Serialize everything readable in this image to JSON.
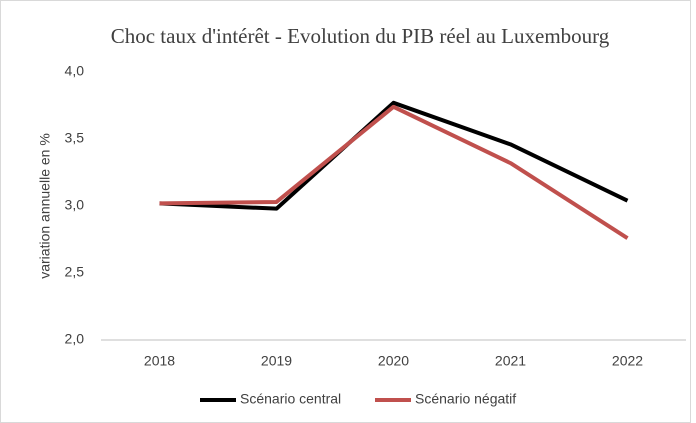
{
  "chart_data": {
    "type": "line",
    "title": "Choc taux d'intérêt - Evolution du PIB réel au Luxembourg",
    "y_label": "variation annuelle en %",
    "categories": [
      "2018",
      "2019",
      "2020",
      "2021",
      "2022"
    ],
    "series": [
      {
        "name": "Scénario central",
        "color": "#000000",
        "values": [
          3.02,
          2.98,
          3.77,
          3.46,
          3.04
        ]
      },
      {
        "name": "Scénario négatif",
        "color": "#c0504d",
        "values": [
          3.02,
          3.03,
          3.74,
          3.32,
          2.76
        ]
      }
    ],
    "ylim": [
      2,
      4
    ],
    "yticks": [
      {
        "value": 2,
        "label": "2,0"
      },
      {
        "value": 2.5,
        "label": "2,5"
      },
      {
        "value": 3,
        "label": "3,0"
      },
      {
        "value": 3.5,
        "label": "3,5"
      },
      {
        "value": 4,
        "label": "4,0"
      }
    ],
    "grid": false,
    "legend": "bottom"
  }
}
